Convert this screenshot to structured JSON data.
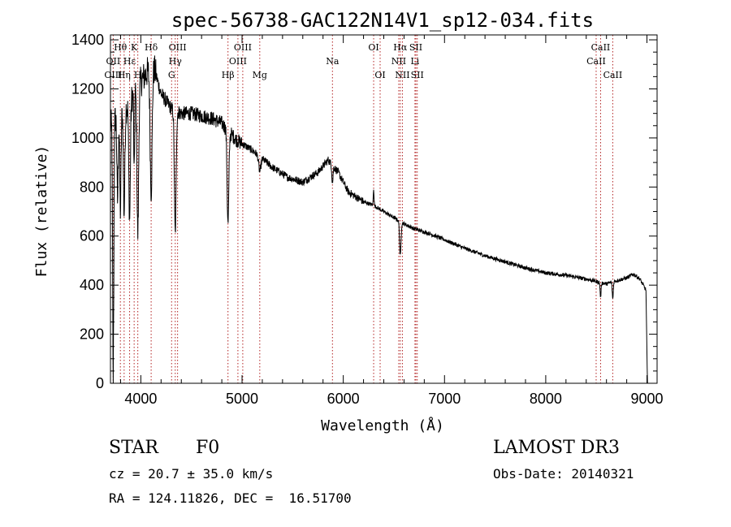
{
  "chart_data": {
    "type": "line",
    "title": "spec-56738-GAC122N14V1_sp12-034.fits",
    "xlabel": "Wavelength (Å)",
    "ylabel": "Flux (relative)",
    "xlim": [
      3700,
      9100
    ],
    "ylim": [
      0,
      1420
    ],
    "xticks": [
      4000,
      5000,
      6000,
      7000,
      8000,
      9000
    ],
    "yticks": [
      0,
      200,
      400,
      600,
      800,
      1000,
      1200,
      1400
    ],
    "grid": false,
    "series": [
      {
        "name": "flux",
        "continuum": [
          [
            3700,
            1050
          ],
          [
            3780,
            1100
          ],
          [
            3850,
            1120
          ],
          [
            3950,
            1200
          ],
          [
            4050,
            1260
          ],
          [
            4120,
            1300
          ],
          [
            4200,
            1180
          ],
          [
            4300,
            1120
          ],
          [
            4400,
            1100
          ],
          [
            4500,
            1100
          ],
          [
            4600,
            1090
          ],
          [
            4700,
            1080
          ],
          [
            4800,
            1060
          ],
          [
            4860,
            1030
          ],
          [
            4950,
            990
          ],
          [
            5100,
            950
          ],
          [
            5300,
            880
          ],
          [
            5450,
            840
          ],
          [
            5600,
            820
          ],
          [
            5750,
            860
          ],
          [
            5850,
            910
          ],
          [
            5950,
            860
          ],
          [
            6050,
            780
          ],
          [
            6200,
            740
          ],
          [
            6300,
            725
          ],
          [
            6400,
            700
          ],
          [
            6500,
            675
          ],
          [
            6600,
            650
          ],
          [
            6700,
            630
          ],
          [
            6850,
            610
          ],
          [
            7000,
            585
          ],
          [
            7200,
            550
          ],
          [
            7400,
            520
          ],
          [
            7600,
            495
          ],
          [
            7800,
            470
          ],
          [
            8000,
            450
          ],
          [
            8200,
            440
          ],
          [
            8400,
            425
          ],
          [
            8500,
            415
          ],
          [
            8600,
            405
          ],
          [
            8700,
            418
          ],
          [
            8800,
            430
          ],
          [
            8870,
            445
          ],
          [
            8930,
            425
          ],
          [
            8970,
            395
          ],
          [
            8990,
            380
          ],
          [
            9005,
            0
          ]
        ],
        "features": [
          {
            "center": 3727,
            "width": 8,
            "depth": -1050
          },
          {
            "center": 3770,
            "width": 9,
            "depth": -350
          },
          {
            "center": 3798,
            "width": 9,
            "depth": -400
          },
          {
            "center": 3835,
            "width": 10,
            "depth": -420
          },
          {
            "center": 3889,
            "width": 11,
            "depth": -480
          },
          {
            "center": 3934,
            "width": 6,
            "depth": -350
          },
          {
            "center": 3970,
            "width": 12,
            "depth": -600
          },
          {
            "center": 4102,
            "width": 14,
            "depth": -500
          },
          {
            "center": 4340,
            "width": 12,
            "depth": -500
          },
          {
            "center": 4861,
            "width": 12,
            "depth": -380
          },
          {
            "center": 5175,
            "width": 15,
            "depth": -60
          },
          {
            "center": 5893,
            "width": 8,
            "depth": -70
          },
          {
            "center": 6300,
            "width": 5,
            "depth": 70
          },
          {
            "center": 6563,
            "width": 10,
            "depth": -140
          },
          {
            "center": 8542,
            "width": 7,
            "depth": -60
          },
          {
            "center": 8662,
            "width": 7,
            "depth": -70
          }
        ]
      }
    ],
    "line_markers": [
      {
        "label": "Hθ",
        "wavelength": 3798,
        "row": 1
      },
      {
        "label": "OII",
        "wavelength": 3727,
        "row": 2
      },
      {
        "label": "OIII",
        "wavelength": 3727,
        "row": 3
      },
      {
        "label": "Hη",
        "wavelength": 3835,
        "row": 3
      },
      {
        "label": "K",
        "wavelength": 3934,
        "row": 1
      },
      {
        "label": "Hε",
        "wavelength": 3889,
        "row": 2
      },
      {
        "label": "H",
        "wavelength": 3970,
        "row": 3
      },
      {
        "label": "Hδ",
        "wavelength": 4102,
        "row": 1
      },
      {
        "label": "OIII",
        "wavelength": 4363,
        "row": 1
      },
      {
        "label": "Hγ",
        "wavelength": 4340,
        "row": 2
      },
      {
        "label": "G",
        "wavelength": 4304,
        "row": 3
      },
      {
        "label": "Hβ",
        "wavelength": 4861,
        "row": 3
      },
      {
        "label": "OIII",
        "wavelength": 5007,
        "row": 1
      },
      {
        "label": "OIII",
        "wavelength": 4959,
        "row": 2
      },
      {
        "label": "Mg",
        "wavelength": 5175,
        "row": 3
      },
      {
        "label": "Na",
        "wavelength": 5893,
        "row": 2
      },
      {
        "label": "OI",
        "wavelength": 6300,
        "row": 1
      },
      {
        "label": "OI",
        "wavelength": 6364,
        "row": 3
      },
      {
        "label": "Hα",
        "wavelength": 6563,
        "row": 1
      },
      {
        "label": "NII",
        "wavelength": 6548,
        "row": 2
      },
      {
        "label": "NII",
        "wavelength": 6584,
        "row": 3
      },
      {
        "label": "SII",
        "wavelength": 6717,
        "row": 1
      },
      {
        "label": "Li",
        "wavelength": 6708,
        "row": 2
      },
      {
        "label": "SII",
        "wavelength": 6731,
        "row": 3
      },
      {
        "label": "CaII",
        "wavelength": 8542,
        "row": 1
      },
      {
        "label": "CaII",
        "wavelength": 8498,
        "row": 2
      },
      {
        "label": "CaII",
        "wavelength": 8662,
        "row": 3
      }
    ],
    "line_color": "#000000",
    "marker_color": "#b22222"
  },
  "info": {
    "object_class": "STAR",
    "subclass": "F0",
    "survey": "LAMOST DR3",
    "redshift": "cz = 20.7 ± 35.0 km/s",
    "obs_date": "Obs-Date: 20140321",
    "coords": "RA = 124.11826, DEC =  16.51700"
  }
}
